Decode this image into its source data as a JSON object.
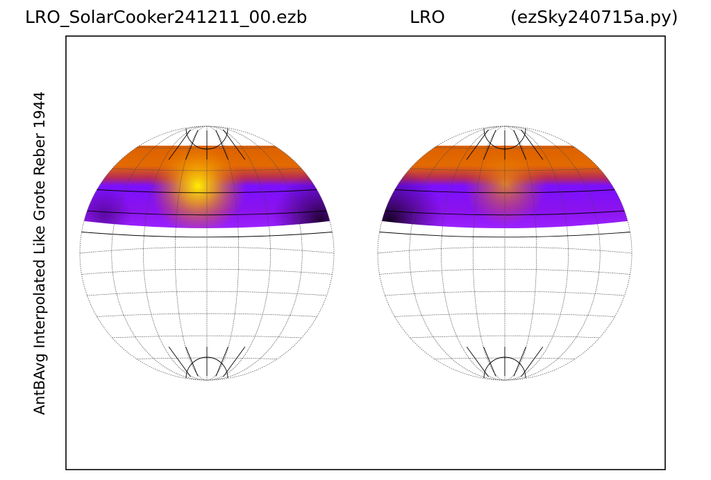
{
  "titles": {
    "left": "LRO_SolarCooker241211_00.ezb",
    "center": "LRO",
    "right": "(ezSky240715a.py)"
  },
  "ylabel": "AntBAvg Interpolated Like Grote Reber 1944",
  "chart_data": {
    "type": "heatmap",
    "projection": "two-hemisphere sky map",
    "title": "",
    "ylabel": "AntBAvg Interpolated Like Grote Reber 1944",
    "colormap": [
      "#000000",
      "#7b00ff",
      "#9b1fd0",
      "#e06000",
      "#ffee00"
    ],
    "panels": [
      {
        "name": "left hemisphere",
        "hot_spot_position": "center of band",
        "dark_region": "lower right of band"
      },
      {
        "name": "right hemisphere",
        "hot_spot_position": "center of band",
        "dark_region": "lower left of band"
      }
    ]
  }
}
